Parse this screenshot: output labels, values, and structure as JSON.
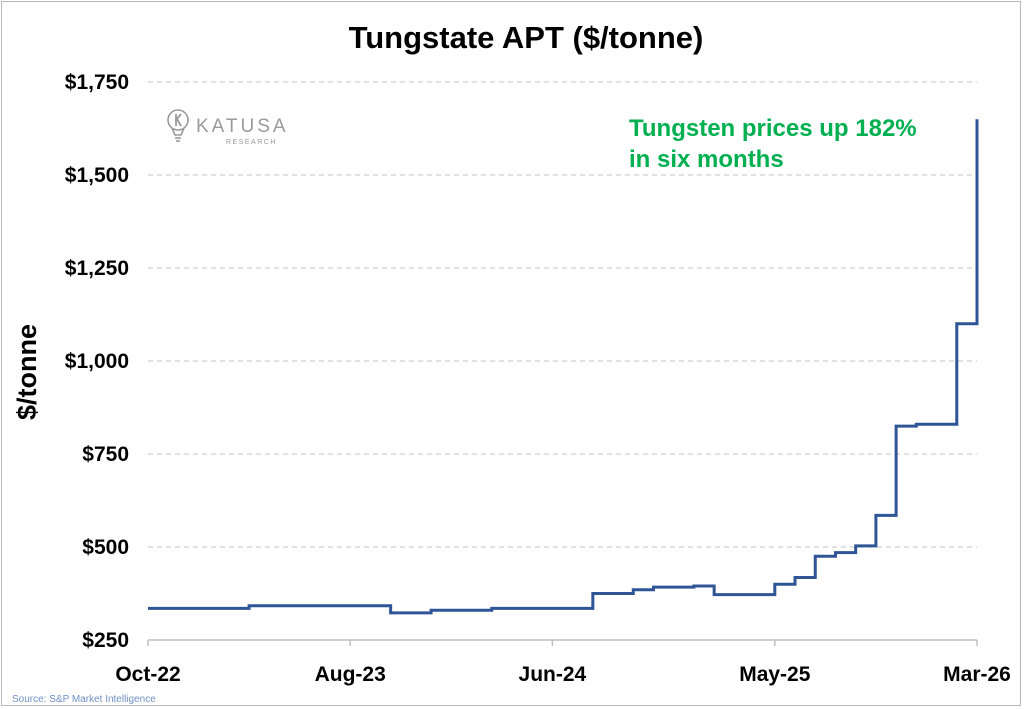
{
  "chart_data": {
    "type": "line",
    "title": "Tungstate APT ($/tonne)",
    "ylabel": "$/tonne",
    "xlabel": "",
    "ylim": [
      250,
      1750
    ],
    "yticks": [
      250,
      500,
      750,
      1000,
      1250,
      1500,
      1750
    ],
    "ytick_labels": [
      "$250",
      "$500",
      "$750",
      "$1,000",
      "$1,250",
      "$1,500",
      "$1,750"
    ],
    "xlim": [
      "2022-10",
      "2026-03"
    ],
    "xticks": [
      "2022-10",
      "2023-08",
      "2024-06",
      "2025-05",
      "2026-03"
    ],
    "xtick_labels": [
      "Oct-22",
      "Aug-23",
      "Jun-24",
      "May-25",
      "Mar-26"
    ],
    "grid": "horizontal dashed",
    "line_style": "step",
    "series": [
      {
        "color": "#2f5597",
        "x": [
          "2022-10",
          "2023-03",
          "2023-10",
          "2023-12",
          "2024-03",
          "2024-08",
          "2024-10",
          "2024-11",
          "2025-01",
          "2025-02",
          "2025-05",
          "2025-06",
          "2025-07",
          "2025-08",
          "2025-09",
          "2025-10",
          "2025-11",
          "2025-12",
          "2026-02",
          "2026-03"
        ],
        "values": [
          335,
          342,
          323,
          330,
          335,
          375,
          385,
          392,
          395,
          372,
          400,
          418,
          475,
          485,
          503,
          585,
          825,
          830,
          1100,
          1650
        ]
      }
    ],
    "annotations": [
      {
        "text": "Tungsten prices up 182%",
        "color": "#00b050"
      },
      {
        "text": "in six months",
        "color": "#00b050"
      }
    ]
  },
  "logo": {
    "name": "KATUSA",
    "sub": "RESEARCH",
    "icon": "lightbulb-icon"
  },
  "source": "Source: S&P Market Intelligence",
  "colors": {
    "line": "#2f5597",
    "annotation": "#00b050",
    "grid": "#d0d0d0",
    "source": "#6f8fc4"
  }
}
